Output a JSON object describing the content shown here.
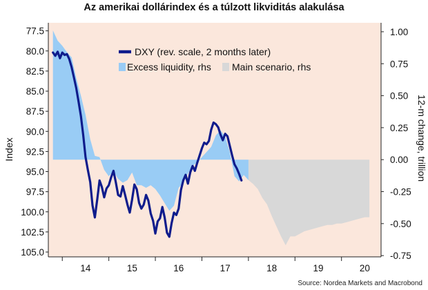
{
  "title": "Az amerikai dollárindex és a túlzott likviditás alakulása",
  "source": "Source: Nordea Markets and Macrobond",
  "colors": {
    "background": "#fbe7dc",
    "dxy": "#0f1c8c",
    "excess": "#99ccf5",
    "scenario": "#d8d8d8"
  },
  "chart_data": {
    "type": "line",
    "ylabel": "Index",
    "y2label": "12-m change, trillion",
    "y_reversed": true,
    "ylim": [
      76.5,
      105.6
    ],
    "y2lim": [
      1.07,
      -0.76
    ],
    "y_ticks": [
      "77.5",
      "80.0",
      "82.5",
      "85.0",
      "87.5",
      "90.0",
      "92.5",
      "95.0",
      "97.5",
      "100.0",
      "102.5",
      "105.0"
    ],
    "y2_ticks": [
      "1.00",
      "0.75",
      "0.50",
      "0.25",
      "0.00",
      "-0.25",
      "-0.50",
      "-0.75"
    ],
    "x_ticks": [
      "14",
      "15",
      "16",
      "17",
      "18",
      "19",
      "20"
    ],
    "legend": [
      "DXY (rev. scale, 2 months later)",
      "Excess liquidity, rhs",
      "Main scenario, rhs"
    ],
    "series": [
      {
        "name": "DXY (rev. scale, 2 months later)",
        "kind": "line",
        "x": [
          2013.8,
          2013.85,
          2013.9,
          2013.95,
          2014.0,
          2014.05,
          2014.1,
          2014.15,
          2014.2,
          2014.25,
          2014.3,
          2014.35,
          2014.4,
          2014.45,
          2014.5,
          2014.55,
          2014.6,
          2014.65,
          2014.7,
          2014.75,
          2014.8,
          2014.85,
          2014.9,
          2014.95,
          2015.0,
          2015.05,
          2015.1,
          2015.15,
          2015.2,
          2015.25,
          2015.3,
          2015.35,
          2015.4,
          2015.45,
          2015.5,
          2015.55,
          2015.6,
          2015.65,
          2015.7,
          2015.75,
          2015.8,
          2015.85,
          2015.9,
          2015.95,
          2016.0,
          2016.05,
          2016.1,
          2016.15,
          2016.2,
          2016.25,
          2016.3,
          2016.35,
          2016.4,
          2016.45,
          2016.5,
          2016.55,
          2016.6,
          2016.65,
          2016.7,
          2016.75,
          2016.8,
          2016.85,
          2016.9,
          2016.95,
          2017.0,
          2017.05,
          2017.1,
          2017.15,
          2017.2,
          2017.25,
          2017.3,
          2017.35,
          2017.4,
          2017.45,
          2017.5,
          2017.55,
          2017.6,
          2017.65,
          2017.7,
          2017.75,
          2017.8,
          2017.85
        ],
        "values": [
          80.2,
          80.6,
          80.1,
          80.9,
          80.2,
          80.5,
          80.4,
          81.0,
          82.0,
          83.3,
          84.6,
          86.3,
          88.1,
          90.5,
          93.2,
          94.8,
          96.3,
          99.2,
          100.7,
          98.5,
          96.1,
          96.9,
          98.2,
          97.1,
          96.7,
          95.7,
          94.9,
          96.3,
          97.9,
          98.1,
          96.8,
          97.9,
          99.1,
          100.1,
          98.5,
          96.6,
          97.2,
          98.9,
          99.6,
          99.1,
          97.9,
          98.6,
          100.2,
          101.1,
          102.7,
          101.2,
          100.8,
          99.4,
          100.7,
          102.6,
          103.1,
          101.4,
          100.1,
          100.4,
          99.6,
          97.3,
          96.1,
          95.4,
          96.5,
          95.1,
          94.3,
          94.9,
          93.9,
          93.0,
          92.1,
          91.4,
          91.6,
          91.2,
          89.8,
          88.9,
          89.1,
          89.5,
          90.4,
          91.1,
          90.3,
          90.6,
          91.8,
          93.0,
          94.1,
          94.6,
          95.3,
          96.1
        ]
      },
      {
        "name": "Excess liquidity, rhs",
        "kind": "area",
        "x": [
          2013.8,
          2013.9,
          2014.0,
          2014.1,
          2014.2,
          2014.3,
          2014.4,
          2014.5,
          2014.6,
          2014.7,
          2014.8,
          2014.9,
          2015.0,
          2015.1,
          2015.2,
          2015.3,
          2015.4,
          2015.5,
          2015.6,
          2015.7,
          2015.8,
          2015.9,
          2016.0,
          2016.1,
          2016.2,
          2016.3,
          2016.4,
          2016.5,
          2016.6,
          2016.7,
          2016.8,
          2016.9,
          2017.0,
          2017.1,
          2017.2,
          2017.3,
          2017.4,
          2017.5,
          2017.6,
          2017.7,
          2017.8,
          2017.9,
          2018.0
        ],
        "values": [
          1.01,
          0.93,
          0.89,
          0.84,
          0.8,
          0.64,
          0.5,
          0.35,
          0.16,
          0.03,
          0.02,
          -0.08,
          -0.13,
          -0.09,
          -0.15,
          -0.18,
          -0.16,
          -0.1,
          -0.2,
          -0.2,
          -0.22,
          -0.2,
          -0.23,
          -0.28,
          -0.34,
          -0.4,
          -0.36,
          -0.22,
          -0.18,
          -0.11,
          -0.05,
          -0.02,
          0.02,
          0.06,
          0.1,
          0.19,
          0.23,
          0.18,
          0.06,
          -0.13,
          -0.17,
          -0.12,
          -0.16
        ]
      },
      {
        "name": "Main scenario, rhs",
        "kind": "area",
        "x": [
          2018.0,
          2018.1,
          2018.2,
          2018.3,
          2018.4,
          2018.5,
          2018.6,
          2018.7,
          2018.8,
          2018.9,
          2019.0,
          2019.1,
          2019.2,
          2019.3,
          2019.4,
          2019.5,
          2019.6,
          2019.7,
          2019.8,
          2019.9,
          2020.0,
          2020.1,
          2020.2,
          2020.3,
          2020.4,
          2020.5,
          2020.6
        ],
        "values": [
          -0.16,
          -0.19,
          -0.23,
          -0.3,
          -0.35,
          -0.44,
          -0.52,
          -0.6,
          -0.67,
          -0.6,
          -0.6,
          -0.58,
          -0.56,
          -0.55,
          -0.54,
          -0.53,
          -0.52,
          -0.51,
          -0.51,
          -0.5,
          -0.5,
          -0.49,
          -0.48,
          -0.47,
          -0.46,
          -0.45,
          -0.45
        ]
      }
    ]
  }
}
